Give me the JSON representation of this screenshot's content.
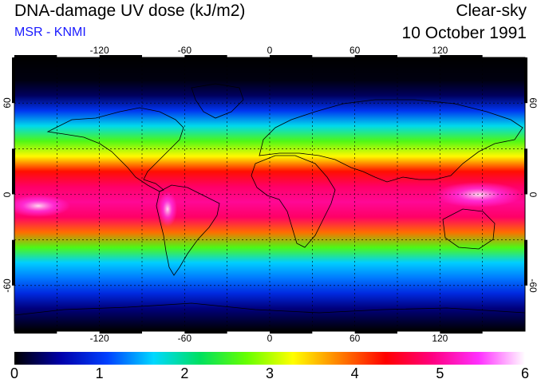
{
  "header": {
    "title": "DNA-damage UV dose (kJ/m2)",
    "source": "MSR - KNMI",
    "scenario": "Clear-sky",
    "date": "10 October 1991"
  },
  "map": {
    "lon_ticks": [
      -120,
      -60,
      0,
      60,
      120
    ],
    "lat_ticks": [
      60,
      0,
      -60
    ],
    "lon_range": [
      -180,
      180
    ],
    "lat_range": [
      -90,
      90
    ],
    "gridlines": "dashed"
  },
  "chart_data": {
    "type": "heatmap",
    "title": "DNA-damage UV dose (kJ/m2)",
    "x": [
      -180,
      180
    ],
    "y": [
      -90,
      90
    ],
    "lat_profile": [
      {
        "lat": 90,
        "value": 0.0
      },
      {
        "lat": 75,
        "value": 0.05
      },
      {
        "lat": 65,
        "value": 0.3
      },
      {
        "lat": 55,
        "value": 1.0
      },
      {
        "lat": 45,
        "value": 1.7
      },
      {
        "lat": 35,
        "value": 2.6
      },
      {
        "lat": 25,
        "value": 3.3
      },
      {
        "lat": 15,
        "value": 4.3
      },
      {
        "lat": 5,
        "value": 4.8
      },
      {
        "lat": -5,
        "value": 5.0
      },
      {
        "lat": -15,
        "value": 4.8
      },
      {
        "lat": -25,
        "value": 3.9
      },
      {
        "lat": -35,
        "value": 2.6
      },
      {
        "lat": -45,
        "value": 1.6
      },
      {
        "lat": -55,
        "value": 1.3
      },
      {
        "lat": -65,
        "value": 0.9
      },
      {
        "lat": -75,
        "value": 0.4
      },
      {
        "lat": -90,
        "value": 0.0
      }
    ],
    "colorbar": {
      "min": 0,
      "max": 6,
      "ticks": [
        0,
        1,
        2,
        3,
        4,
        5,
        6
      ],
      "colors": [
        "#000000",
        "#0000aa",
        "#0040ff",
        "#00d8ff",
        "#00e060",
        "#66ff00",
        "#ffff00",
        "#ff8000",
        "#ff0000",
        "#ff0080",
        "#ff30ff",
        "#ffffff"
      ]
    }
  }
}
